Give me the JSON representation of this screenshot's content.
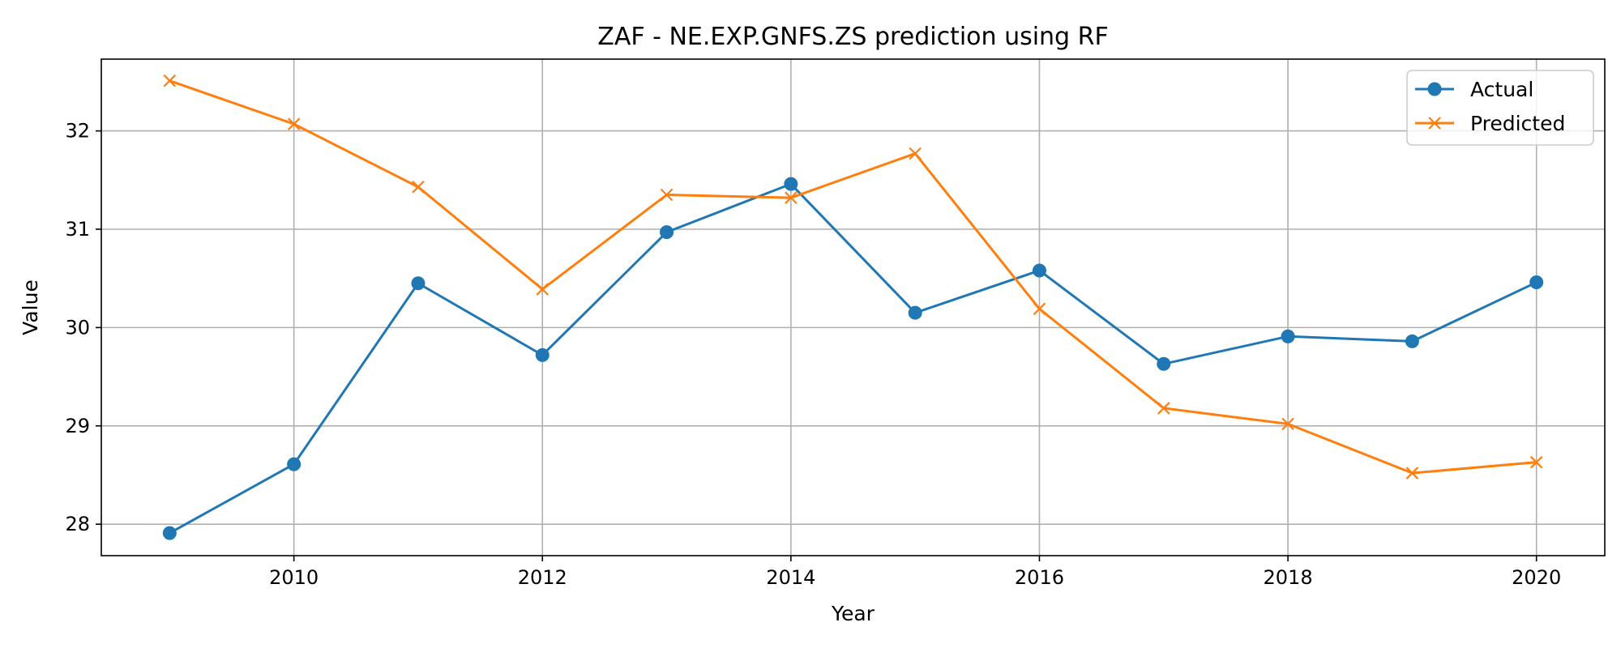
{
  "chart_data": {
    "type": "line",
    "title": "ZAF - NE.EXP.GNFS.ZS prediction using RF",
    "xlabel": "Year",
    "ylabel": "Value",
    "x": [
      2009,
      2010,
      2011,
      2012,
      2013,
      2014,
      2015,
      2016,
      2017,
      2018,
      2019,
      2020
    ],
    "xlim": [
      2008.45,
      2020.55
    ],
    "ylim": [
      27.68,
      32.73
    ],
    "xticks": [
      2010,
      2012,
      2014,
      2016,
      2018,
      2020
    ],
    "yticks": [
      28,
      29,
      30,
      31,
      32
    ],
    "grid": true,
    "legend_position": "top-right",
    "series": [
      {
        "name": "Actual",
        "color": "#1f77b4",
        "marker": "circle",
        "values": [
          27.91,
          28.61,
          30.45,
          29.72,
          30.97,
          31.46,
          30.15,
          30.58,
          29.63,
          29.91,
          29.86,
          30.46
        ]
      },
      {
        "name": "Predicted",
        "color": "#ff7f0e",
        "marker": "x",
        "values": [
          32.51,
          32.07,
          31.43,
          30.39,
          31.35,
          31.32,
          31.77,
          30.19,
          29.18,
          29.02,
          28.52,
          28.63
        ]
      }
    ]
  }
}
